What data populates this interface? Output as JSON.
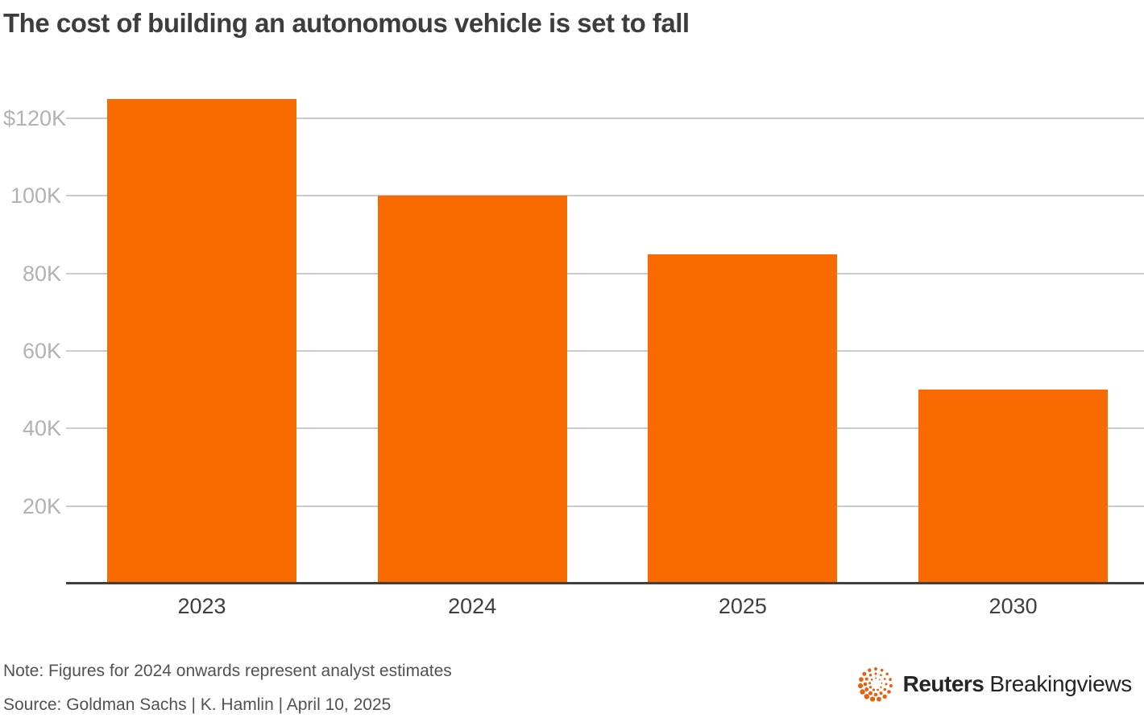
{
  "title": "The cost of building an autonomous vehicle is set to fall",
  "footer": {
    "note": "Note: Figures for 2024 onwards represent analyst estimates",
    "source": "Source: Goldman Sachs | K. Hamlin | April 10, 2025"
  },
  "branding": {
    "logo_icon": "reuters-dotted-orb",
    "name_bold": "Reuters",
    "name_regular": "Breakingviews"
  },
  "colors": {
    "bar": "#F96A01",
    "grid": "#CBCBCB",
    "baseline": "#3F3F3F",
    "title_text": "#3D3D3D",
    "y_tick_text": "#B2B2B2",
    "x_tick_text": "#3E3E3E",
    "footer_text": "#525252",
    "logo_orange": "#EB5E0D"
  },
  "chart_data": {
    "type": "bar",
    "title": "The cost of building an autonomous vehicle is set to fall",
    "categories": [
      "2023",
      "2024",
      "2025",
      "2030"
    ],
    "values": [
      125000,
      100000,
      85000,
      50000
    ],
    "xlabel": "",
    "ylabel": "",
    "ylim": [
      0,
      130000
    ],
    "yticks": [
      {
        "value": 120000,
        "label": "$120K"
      },
      {
        "value": 100000,
        "label": "100K"
      },
      {
        "value": 80000,
        "label": "80K"
      },
      {
        "value": 60000,
        "label": "60K"
      },
      {
        "value": 40000,
        "label": "40K"
      },
      {
        "value": 20000,
        "label": "20K"
      }
    ],
    "grid": "horizontal-only",
    "legend": "none",
    "bar_color": "#F96A01"
  }
}
